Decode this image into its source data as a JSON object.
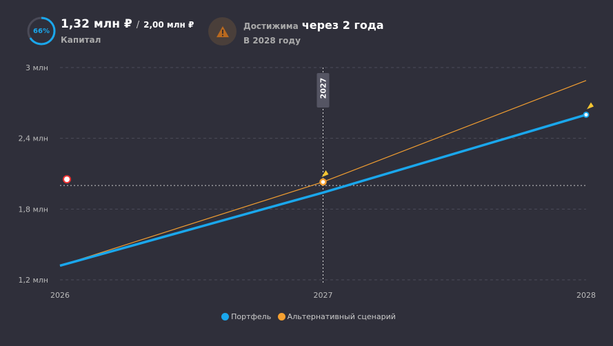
{
  "header": {
    "progress_percent": 66,
    "progress_label": "66%",
    "capital_value": "1,32 млн ₽",
    "separator": "/",
    "goal_value": "2,00 млн ₽",
    "capital_label": "Капитал",
    "reach_label": "Достижима",
    "reach_value": "через 2 года",
    "reach_year": "В 2028 году"
  },
  "colors": {
    "portfolio": "#1aa7ec",
    "alternative": "#f5a031",
    "background": "#2f2f3a"
  },
  "chart_data": {
    "type": "line",
    "x": [
      "2026",
      "2027",
      "2028"
    ],
    "yticks": [
      "1,2 млн",
      "1,8 млн",
      "2,4 млн",
      "3 млн"
    ],
    "ytick_values": [
      1.2,
      1.8,
      2.4,
      3.0
    ],
    "ylim": [
      1.2,
      3.0
    ],
    "target": 2.0,
    "crosshair_label": "2027",
    "series": [
      {
        "name": "Портфель",
        "values": [
          1.32,
          1.94,
          2.6
        ]
      },
      {
        "name": "Альтернативный сценарий",
        "values": [
          1.32,
          2.03,
          2.89
        ]
      }
    ],
    "legend_position": "bottom"
  }
}
